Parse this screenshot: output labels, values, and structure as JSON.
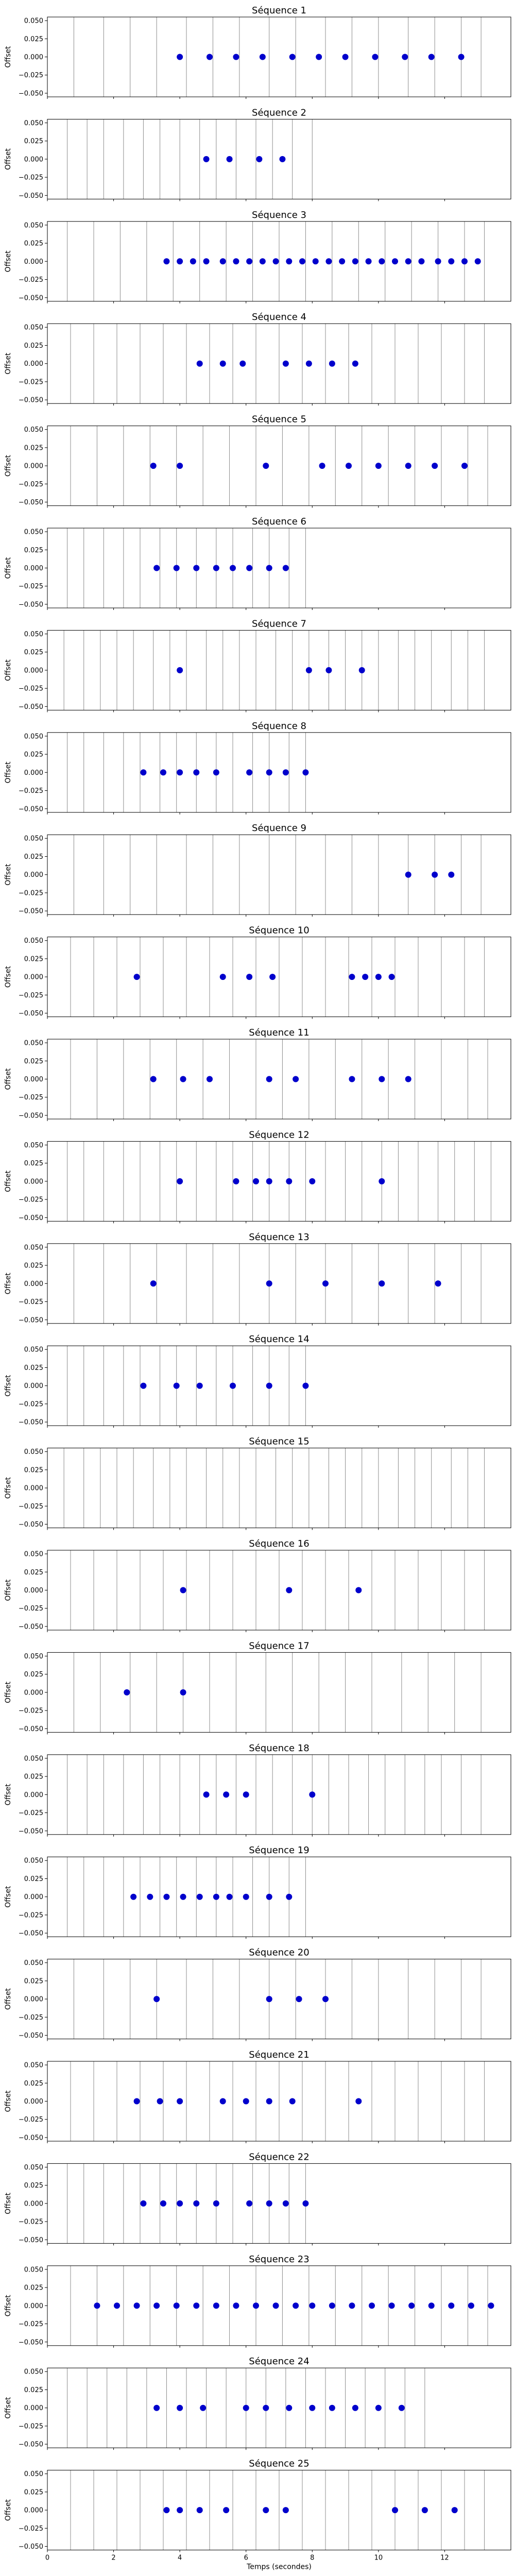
{
  "chart_data": [
    {
      "type": "scatter",
      "title": "Séquence 1",
      "ylabel": "Offset",
      "xlim": [
        0,
        14
      ],
      "ylim": [
        -0.055,
        0.055
      ],
      "yticks": [
        "0.050",
        "0.025",
        "0.000",
        "−0.025",
        "−0.050"
      ],
      "point_color": "#0000cc",
      "vlines": [
        0.8,
        1.7,
        2.5,
        3.3,
        4.2,
        5.0,
        5.8,
        6.7,
        7.5,
        8.4,
        9.2,
        10.0,
        10.9,
        11.7,
        12.5,
        13.1
      ],
      "x": [
        4.0,
        4.9,
        5.7,
        6.5,
        7.4,
        8.2,
        9.0,
        9.9,
        10.8,
        11.6,
        12.5
      ]
    },
    {
      "type": "scatter",
      "title": "Séquence 2",
      "ylabel": "Offset",
      "xlim": [
        0,
        14
      ],
      "ylim": [
        -0.055,
        0.055
      ],
      "yticks": [
        "0.050",
        "0.025",
        "0.000",
        "−0.025",
        "−0.050"
      ],
      "point_color": "#0000cc",
      "vlines": [
        0.6,
        1.2,
        1.7,
        2.3,
        2.9,
        3.4,
        4.0,
        4.6,
        5.1,
        5.7,
        6.3,
        6.8,
        7.4,
        8.0
      ],
      "x": [
        4.8,
        5.5,
        6.4,
        7.1
      ]
    },
    {
      "type": "scatter",
      "title": "Séquence 3",
      "ylabel": "Offset",
      "xlim": [
        0,
        14
      ],
      "ylim": [
        -0.055,
        0.055
      ],
      "yticks": [
        "0.050",
        "0.025",
        "0.000",
        "−0.025",
        "−0.050"
      ],
      "point_color": "#0000cc",
      "vlines": [
        0.6,
        1.4,
        2.2,
        3.0,
        3.8,
        4.6,
        5.4,
        6.2,
        7.0,
        7.8,
        8.6,
        9.4,
        10.2,
        11.0,
        11.8,
        12.6,
        13.2
      ],
      "x": [
        3.6,
        4.0,
        4.4,
        4.8,
        5.3,
        5.7,
        6.1,
        6.5,
        6.9,
        7.3,
        7.7,
        8.1,
        8.5,
        8.9,
        9.3,
        9.7,
        10.1,
        10.5,
        10.9,
        11.3,
        11.8,
        12.2,
        12.6,
        13.0
      ]
    },
    {
      "type": "scatter",
      "title": "Séquence 4",
      "ylabel": "Offset",
      "xlim": [
        0,
        14
      ],
      "ylim": [
        -0.055,
        0.055
      ],
      "yticks": [
        "0.050",
        "0.025",
        "0.000",
        "−0.025",
        "−0.050"
      ],
      "point_color": "#0000cc",
      "vlines": [
        0.7,
        1.4,
        2.1,
        2.8,
        3.5,
        4.2,
        4.9,
        5.6,
        6.3,
        7.0,
        7.7,
        8.4,
        9.1,
        9.8,
        10.5,
        11.2,
        11.9,
        12.6,
        13.2
      ],
      "x": [
        4.6,
        5.3,
        5.9,
        7.2,
        7.9,
        8.6,
        9.3
      ]
    },
    {
      "type": "scatter",
      "title": "Séquence 5",
      "ylabel": "Offset",
      "xlim": [
        0,
        14
      ],
      "ylim": [
        -0.055,
        0.055
      ],
      "yticks": [
        "0.050",
        "0.025",
        "0.000",
        "−0.025",
        "−0.050"
      ],
      "point_color": "#0000cc",
      "vlines": [
        0.7,
        1.5,
        2.3,
        3.1,
        3.9,
        4.7,
        5.5,
        6.3,
        7.1,
        7.9,
        8.7,
        9.5,
        10.3,
        11.1,
        11.9,
        12.7,
        13.3
      ],
      "x": [
        3.2,
        4.0,
        6.6,
        8.3,
        9.1,
        10.0,
        10.9,
        11.7,
        12.6
      ]
    },
    {
      "type": "scatter",
      "title": "Séquence 6",
      "ylabel": "Offset",
      "xlim": [
        0,
        14
      ],
      "ylim": [
        -0.055,
        0.055
      ],
      "yticks": [
        "0.050",
        "0.025",
        "0.000",
        "−0.025",
        "−0.050"
      ],
      "point_color": "#0000cc",
      "vlines": [
        0.6,
        1.1,
        1.7,
        2.3,
        2.8,
        3.4,
        3.9,
        4.5,
        5.1,
        5.6,
        6.2,
        6.7,
        7.3,
        7.8
      ],
      "x": [
        3.3,
        3.9,
        4.5,
        5.1,
        5.6,
        6.1,
        6.7,
        7.2
      ]
    },
    {
      "type": "scatter",
      "title": "Séquence 7",
      "ylabel": "Offset",
      "xlim": [
        0,
        14
      ],
      "ylim": [
        -0.055,
        0.055
      ],
      "yticks": [
        "0.050",
        "0.025",
        "0.000",
        "−0.025",
        "−0.050"
      ],
      "point_color": "#0000cc",
      "vlines": [
        0.5,
        1.1,
        1.6,
        2.1,
        2.6,
        3.2,
        3.7,
        4.2,
        4.8,
        5.3,
        5.8,
        6.3,
        6.9,
        7.4,
        7.9,
        8.5,
        9.0,
        9.5,
        10.0,
        10.6,
        11.1,
        11.6,
        12.2,
        12.7,
        13.2
      ],
      "x": [
        4.0,
        7.9,
        8.5,
        9.5
      ]
    },
    {
      "type": "scatter",
      "title": "Séquence 8",
      "ylabel": "Offset",
      "xlim": [
        0,
        14
      ],
      "ylim": [
        -0.055,
        0.055
      ],
      "yticks": [
        "0.050",
        "0.025",
        "0.000",
        "−0.025",
        "−0.050"
      ],
      "point_color": "#0000cc",
      "vlines": [
        0.6,
        1.1,
        1.7,
        2.3,
        2.8,
        3.4,
        3.9,
        4.5,
        5.1,
        5.6,
        6.2,
        6.7,
        7.3,
        7.8
      ],
      "x": [
        2.9,
        3.5,
        4.0,
        4.5,
        5.1,
        6.1,
        6.7,
        7.2,
        7.8
      ]
    },
    {
      "type": "scatter",
      "title": "Séquence 9",
      "ylabel": "Offset",
      "xlim": [
        0,
        14
      ],
      "ylim": [
        -0.055,
        0.055
      ],
      "yticks": [
        "0.050",
        "0.025",
        "0.000",
        "−0.025",
        "−0.050"
      ],
      "point_color": "#0000cc",
      "vlines": [
        0.8,
        1.7,
        2.5,
        3.3,
        4.2,
        5.0,
        5.8,
        6.7,
        7.5,
        8.4,
        9.2,
        10.0,
        10.9,
        11.7,
        12.5,
        13.1
      ],
      "x": [
        10.9,
        11.7,
        12.2
      ]
    },
    {
      "type": "scatter",
      "title": "Séquence 10",
      "ylabel": "Offset",
      "xlim": [
        0,
        14
      ],
      "ylim": [
        -0.055,
        0.055
      ],
      "yticks": [
        "0.050",
        "0.025",
        "0.000",
        "−0.025",
        "−0.050"
      ],
      "point_color": "#0000cc",
      "vlines": [
        0.7,
        1.4,
        2.1,
        2.8,
        3.5,
        4.2,
        4.9,
        5.6,
        6.3,
        7.0,
        7.7,
        8.4,
        9.1,
        9.8,
        10.5,
        11.2,
        11.9,
        12.6,
        13.2
      ],
      "x": [
        2.7,
        5.3,
        6.1,
        6.8,
        9.2,
        9.6,
        10.0,
        10.4
      ]
    },
    {
      "type": "scatter",
      "title": "Séquence 11",
      "ylabel": "Offset",
      "xlim": [
        0,
        14
      ],
      "ylim": [
        -0.055,
        0.055
      ],
      "yticks": [
        "0.050",
        "0.025",
        "0.000",
        "−0.025",
        "−0.050"
      ],
      "point_color": "#0000cc",
      "vlines": [
        0.7,
        1.5,
        2.3,
        3.1,
        3.9,
        4.7,
        5.5,
        6.3,
        7.1,
        7.9,
        8.7,
        9.5,
        10.3,
        11.1,
        11.9,
        12.7,
        13.3
      ],
      "x": [
        3.2,
        4.1,
        4.9,
        6.7,
        7.5,
        9.2,
        10.1,
        10.9
      ]
    },
    {
      "type": "scatter",
      "title": "Séquence 12",
      "ylabel": "Offset",
      "xlim": [
        0,
        14
      ],
      "ylim": [
        -0.055,
        0.055
      ],
      "yticks": [
        "0.050",
        "0.025",
        "0.000",
        "−0.025",
        "−0.050"
      ],
      "point_color": "#0000cc",
      "vlines": [
        0.6,
        1.1,
        1.7,
        2.3,
        2.8,
        3.4,
        3.9,
        4.5,
        5.1,
        5.6,
        6.2,
        6.7,
        7.3,
        7.8,
        8.4,
        9.0,
        9.5,
        10.1,
        10.6,
        11.2,
        11.8,
        12.3,
        12.9,
        13.4
      ],
      "x": [
        4.0,
        5.7,
        6.3,
        6.7,
        7.3,
        8.0,
        10.1
      ]
    },
    {
      "type": "scatter",
      "title": "Séquence 13",
      "ylabel": "Offset",
      "xlim": [
        0,
        14
      ],
      "ylim": [
        -0.055,
        0.055
      ],
      "yticks": [
        "0.050",
        "0.025",
        "0.000",
        "−0.025",
        "−0.050"
      ],
      "point_color": "#0000cc",
      "vlines": [
        0.8,
        1.7,
        2.5,
        3.3,
        4.2,
        5.0,
        5.8,
        6.7,
        7.5,
        8.4,
        9.2,
        10.0,
        10.9,
        11.7,
        12.5,
        13.1
      ],
      "x": [
        3.2,
        6.7,
        8.4,
        10.1,
        11.8
      ]
    },
    {
      "type": "scatter",
      "title": "Séquence 14",
      "ylabel": "Offset",
      "xlim": [
        0,
        14
      ],
      "ylim": [
        -0.055,
        0.055
      ],
      "yticks": [
        "0.050",
        "0.025",
        "0.000",
        "−0.025",
        "−0.050"
      ],
      "point_color": "#0000cc",
      "vlines": [
        0.6,
        1.1,
        1.7,
        2.3,
        2.8,
        3.4,
        3.9,
        4.5,
        5.1,
        5.6,
        6.2,
        6.7,
        7.3,
        7.8
      ],
      "x": [
        2.9,
        3.9,
        4.6,
        5.6,
        6.7,
        7.8
      ]
    },
    {
      "type": "scatter",
      "title": "Séquence 15",
      "ylabel": "Offset",
      "xlim": [
        0,
        14
      ],
      "ylim": [
        -0.055,
        0.055
      ],
      "yticks": [
        "0.050",
        "0.025",
        "0.000",
        "−0.025",
        "−0.050"
      ],
      "point_color": "#0000cc",
      "vlines": [
        0.5,
        1.1,
        1.6,
        2.1,
        2.6,
        3.2,
        3.7,
        4.2,
        4.8,
        5.3,
        5.8,
        6.3,
        6.9,
        7.4,
        7.9,
        8.5,
        9.0,
        9.5,
        10.0,
        10.6,
        11.1,
        11.6,
        12.2,
        12.7,
        13.2
      ],
      "x": []
    },
    {
      "type": "scatter",
      "title": "Séquence 16",
      "ylabel": "Offset",
      "xlim": [
        0,
        14
      ],
      "ylim": [
        -0.055,
        0.055
      ],
      "yticks": [
        "0.050",
        "0.025",
        "0.000",
        "−0.025",
        "−0.050"
      ],
      "point_color": "#0000cc",
      "vlines": [
        0.7,
        1.4,
        2.1,
        2.8,
        3.5,
        4.2,
        4.9,
        5.6,
        6.3,
        7.0,
        7.7,
        8.4,
        9.1,
        9.8,
        10.5,
        11.2,
        11.9,
        12.6,
        13.2
      ],
      "x": [
        4.1,
        7.3,
        9.4
      ]
    },
    {
      "type": "scatter",
      "title": "Séquence 17",
      "ylabel": "Offset",
      "xlim": [
        0,
        14
      ],
      "ylim": [
        -0.055,
        0.055
      ],
      "yticks": [
        "0.050",
        "0.025",
        "0.000",
        "−0.025",
        "−0.050"
      ],
      "point_color": "#0000cc",
      "vlines": [
        0.8,
        1.6,
        2.5,
        3.3,
        4.1,
        4.9,
        5.7,
        6.6,
        7.4,
        8.2,
        9.0,
        9.8,
        10.7,
        11.5,
        12.3,
        13.1
      ],
      "x": [
        2.4,
        4.1
      ]
    },
    {
      "type": "scatter",
      "title": "Séquence 18",
      "ylabel": "Offset",
      "xlim": [
        0,
        14
      ],
      "ylim": [
        -0.055,
        0.055
      ],
      "yticks": [
        "0.050",
        "0.025",
        "0.000",
        "−0.025",
        "−0.050"
      ],
      "point_color": "#0000cc",
      "vlines": [
        0.6,
        1.2,
        1.7,
        2.3,
        2.9,
        3.4,
        4.0,
        4.6,
        5.1,
        5.7,
        6.3,
        6.8,
        7.4,
        8.0,
        8.5,
        9.1,
        9.7,
        10.2,
        10.8,
        11.4,
        11.9,
        12.5,
        13.1
      ],
      "x": [
        4.8,
        5.4,
        6.0,
        8.0
      ]
    },
    {
      "type": "scatter",
      "title": "Séquence 19",
      "ylabel": "Offset",
      "xlim": [
        0,
        14
      ],
      "ylim": [
        -0.055,
        0.055
      ],
      "yticks": [
        "0.050",
        "0.025",
        "0.000",
        "−0.025",
        "−0.050"
      ],
      "point_color": "#0000cc",
      "vlines": [
        0.6,
        1.1,
        1.7,
        2.3,
        2.8,
        3.4,
        3.9,
        4.5,
        5.1,
        5.6,
        6.2,
        6.7,
        7.3,
        7.8
      ],
      "x": [
        2.6,
        3.1,
        3.6,
        4.1,
        4.6,
        5.1,
        5.5,
        6.0,
        6.7,
        7.3
      ]
    },
    {
      "type": "scatter",
      "title": "Séquence 20",
      "ylabel": "Offset",
      "xlim": [
        0,
        14
      ],
      "ylim": [
        -0.055,
        0.055
      ],
      "yticks": [
        "0.050",
        "0.025",
        "0.000",
        "−0.025",
        "−0.050"
      ],
      "point_color": "#0000cc",
      "vlines": [
        0.8,
        1.7,
        2.5,
        3.3,
        4.2,
        5.0,
        5.8,
        6.7,
        7.5,
        8.4,
        9.2,
        10.0,
        10.9,
        11.7,
        12.5,
        13.1
      ],
      "x": [
        3.3,
        6.7,
        7.6,
        8.4
      ]
    },
    {
      "type": "scatter",
      "title": "Séquence 21",
      "ylabel": "Offset",
      "xlim": [
        0,
        14
      ],
      "ylim": [
        -0.055,
        0.055
      ],
      "yticks": [
        "0.050",
        "0.025",
        "0.000",
        "−0.025",
        "−0.050"
      ],
      "point_color": "#0000cc",
      "vlines": [
        0.7,
        1.4,
        2.1,
        2.8,
        3.5,
        4.2,
        4.9,
        5.6,
        6.3,
        7.0,
        7.7,
        8.4,
        9.1,
        9.8,
        10.5,
        11.2,
        11.9,
        12.6,
        13.2
      ],
      "x": [
        2.7,
        3.4,
        4.0,
        5.3,
        6.0,
        6.7,
        7.4,
        9.4
      ]
    },
    {
      "type": "scatter",
      "title": "Séquence 22",
      "ylabel": "Offset",
      "xlim": [
        0,
        14
      ],
      "ylim": [
        -0.055,
        0.055
      ],
      "yticks": [
        "0.050",
        "0.025",
        "0.000",
        "−0.025",
        "−0.050"
      ],
      "point_color": "#0000cc",
      "vlines": [
        0.6,
        1.1,
        1.7,
        2.3,
        2.8,
        3.4,
        3.9,
        4.5,
        5.1,
        5.6,
        6.2,
        6.7,
        7.3,
        7.8
      ],
      "x": [
        2.9,
        3.5,
        4.0,
        4.5,
        5.1,
        6.1,
        6.7,
        7.2,
        7.8
      ]
    },
    {
      "type": "scatter",
      "title": "Séquence 23",
      "ylabel": "Offset",
      "xlim": [
        0,
        14
      ],
      "ylim": [
        -0.055,
        0.055
      ],
      "yticks": [
        "0.050",
        "0.025",
        "0.000",
        "−0.025",
        "−0.050"
      ],
      "point_color": "#0000cc",
      "vlines": [
        0.7,
        1.5,
        2.3,
        3.1,
        3.9,
        4.7,
        5.5,
        6.3,
        7.1,
        7.9,
        8.7,
        9.5,
        10.3,
        11.1,
        11.9,
        12.7,
        13.3
      ],
      "x": [
        1.5,
        2.1,
        2.7,
        3.3,
        3.9,
        4.5,
        5.1,
        5.7,
        6.3,
        6.9,
        7.5,
        8.0,
        8.6,
        9.2,
        9.8,
        10.4,
        11.0,
        11.6,
        12.2,
        12.8,
        13.4
      ]
    },
    {
      "type": "scatter",
      "title": "Séquence 24",
      "ylabel": "Offset",
      "xlim": [
        0,
        14
      ],
      "ylim": [
        -0.055,
        0.055
      ],
      "yticks": [
        "0.050",
        "0.025",
        "0.000",
        "−0.025",
        "−0.050"
      ],
      "point_color": "#0000cc",
      "vlines": [
        0.6,
        1.2,
        1.8,
        2.4,
        3.0,
        3.6,
        4.2,
        4.8,
        5.4,
        6.0,
        6.6,
        7.2,
        7.8,
        8.4,
        9.0,
        9.6,
        10.2,
        10.8,
        11.4
      ],
      "x": [
        3.3,
        4.0,
        4.7,
        6.0,
        6.6,
        7.3,
        8.0,
        8.6,
        9.3,
        10.0,
        10.7
      ]
    },
    {
      "type": "scatter",
      "title": "Séquence 25",
      "ylabel": "Offset",
      "xlabel": "Temps (secondes)",
      "xlim": [
        0,
        14
      ],
      "ylim": [
        -0.055,
        0.055
      ],
      "yticks": [
        "0.050",
        "0.025",
        "0.000",
        "−0.025",
        "−0.050"
      ],
      "xticks": [
        "0",
        "2",
        "4",
        "6",
        "8",
        "10",
        "12"
      ],
      "point_color": "#0000cc",
      "vlines": [
        0.7,
        1.4,
        2.1,
        2.8,
        3.5,
        4.2,
        4.9,
        5.6,
        6.3,
        7.0,
        7.7,
        8.4,
        9.1,
        9.8,
        10.5,
        11.2,
        11.9,
        12.6,
        13.2
      ],
      "x": [
        3.6,
        4.0,
        4.6,
        5.4,
        6.6,
        7.2,
        10.5,
        11.4,
        12.3
      ]
    }
  ]
}
